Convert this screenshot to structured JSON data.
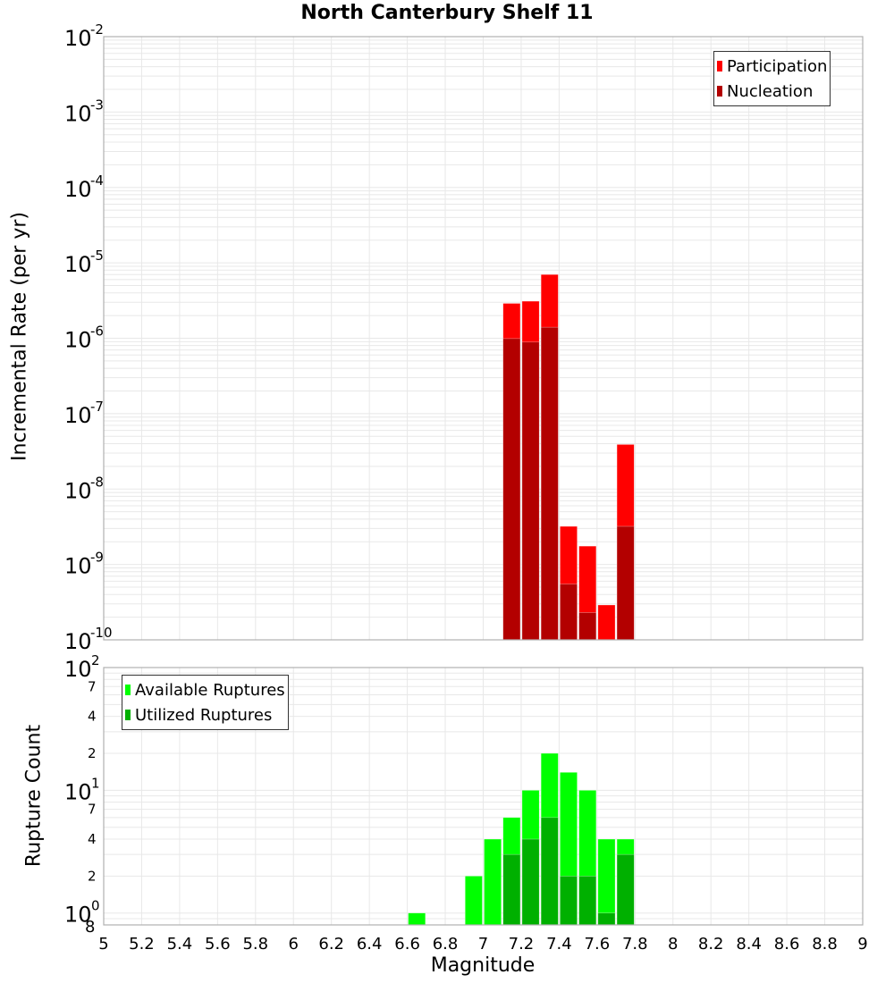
{
  "title": "North Canterbury Shelf 11",
  "colors": {
    "participation": "#ff0000",
    "nucleation": "#b30000",
    "available": "#00ff00",
    "utilized": "#00b000",
    "grid": "#e8e8e8",
    "axis": "#b0b0b0"
  },
  "top_plot": {
    "ylabel": "Incremental Rate (per yr)",
    "legend": [
      "Participation",
      "Nucleation"
    ]
  },
  "bottom_plot": {
    "ylabel": "Rupture Count",
    "legend": [
      "Available Ruptures",
      "Utilized Ruptures"
    ]
  },
  "xlabel": "Magnitude",
  "chart_data": [
    {
      "type": "bar",
      "title": "North Canterbury Shelf 11",
      "xlabel": "Magnitude",
      "ylabel": "Incremental Rate (per yr)",
      "yscale": "log",
      "ylim": [
        1e-10,
        0.01
      ],
      "xlim": [
        5,
        9
      ],
      "x_ticks": [
        "5",
        "5.2",
        "5.4",
        "5.6",
        "5.8",
        "6",
        "6.2",
        "6.4",
        "6.6",
        "6.8",
        "7",
        "7.2",
        "7.4",
        "7.6",
        "7.8",
        "8",
        "8.2",
        "8.4",
        "8.6",
        "8.8",
        "9"
      ],
      "y_ticks": [
        "10^-2",
        "10^-3",
        "10^-4",
        "10^-5",
        "10^-6",
        "10^-7",
        "10^-8",
        "10^-9",
        "10^-10"
      ],
      "grid": true,
      "legend_position": "top-right",
      "bin_width": 0.1,
      "x": [
        7.1,
        7.2,
        7.3,
        7.4,
        7.5,
        7.6,
        7.7
      ],
      "series": [
        {
          "name": "Participation",
          "color": "#ff0000",
          "values": [
            2.9e-06,
            3.1e-06,
            7e-06,
            3.2e-09,
            1.75e-09,
            2.9e-10,
            3.9e-08
          ]
        },
        {
          "name": "Nucleation",
          "color": "#b30000",
          "values": [
            9.9e-07,
            8.9e-07,
            1.4e-06,
            5.5e-10,
            2.3e-10,
            null,
            3.2e-09
          ]
        }
      ]
    },
    {
      "type": "bar",
      "xlabel": "Magnitude",
      "ylabel": "Rupture Count",
      "yscale": "log",
      "ylim": [
        0.8,
        100
      ],
      "xlim": [
        5,
        9
      ],
      "y_ticks": [
        "10^0",
        "2",
        "4",
        "7",
        "10^1",
        "2",
        "4",
        "7",
        "10^2"
      ],
      "grid": true,
      "legend_position": "top-left",
      "bin_width": 0.1,
      "x": [
        6.6,
        6.9,
        7.0,
        7.1,
        7.2,
        7.3,
        7.4,
        7.5,
        7.6,
        7.7
      ],
      "series": [
        {
          "name": "Available Ruptures",
          "color": "#00ff00",
          "values": [
            1,
            2,
            4,
            6,
            10,
            20,
            14,
            10,
            4,
            4
          ]
        },
        {
          "name": "Utilized Ruptures",
          "color": "#00b000",
          "values": [
            null,
            null,
            null,
            3,
            4,
            6,
            2,
            2,
            1,
            3
          ]
        }
      ]
    }
  ]
}
